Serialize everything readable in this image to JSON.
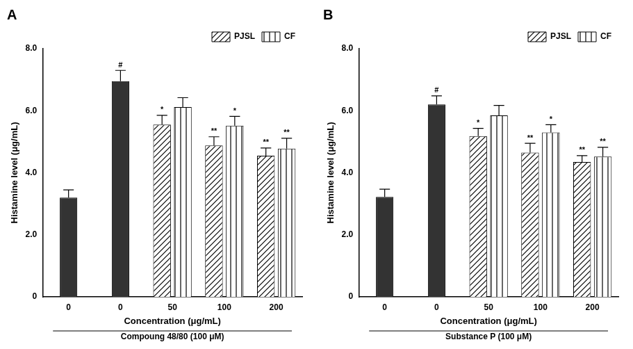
{
  "chart_data": [
    {
      "type": "bar",
      "title": "A",
      "categories": [
        "0",
        "0",
        "50",
        "100",
        "200"
      ],
      "x_label": "Concentration (μg/mL)",
      "x_sublabel": "Compoung 48/80 (100 μM)",
      "y_label": "Histamine level (μg/mL)",
      "values": [
        3.2,
        6.95,
        null,
        null,
        null
      ],
      "errors": [
        0.25,
        0.35,
        null,
        null,
        null
      ],
      "annotations": [
        null,
        "#",
        null,
        null,
        null
      ],
      "color": "#333333",
      "series": [
        {
          "name": "PJSL",
          "color": "#000000",
          "marker": "diagonal",
          "values": [
            null,
            null,
            5.55,
            4.88,
            4.55
          ],
          "errors": [
            null,
            null,
            0.3,
            0.28,
            0.25
          ],
          "annotations": [
            null,
            null,
            "*",
            "**",
            "**"
          ]
        },
        {
          "name": "CF",
          "color": "#000000",
          "marker": "vertical",
          "values": [
            null,
            null,
            6.12,
            5.52,
            4.78
          ],
          "errors": [
            null,
            null,
            0.3,
            0.3,
            0.33
          ],
          "annotations": [
            null,
            null,
            null,
            "*",
            "**"
          ]
        }
      ],
      "ylim": [
        0,
        8
      ],
      "yticks": [
        0,
        {
          "value": 2,
          "label": "2.0"
        },
        {
          "value": 4,
          "label": "4.0"
        },
        {
          "value": 6,
          "label": "6.0"
        },
        {
          "value": 8,
          "label": "8.0"
        }
      ],
      "grid": false,
      "legend": "upper right"
    },
    {
      "type": "bar",
      "title": "B",
      "categories": [
        "0",
        "0",
        "50",
        "100",
        "200"
      ],
      "x_label": "Concentration (μg/mL)",
      "x_sublabel": "Substance P (100 μM)",
      "y_label": "Histamine level (μg/mL)",
      "values": [
        3.22,
        6.2,
        null,
        null,
        null
      ],
      "errors": [
        0.25,
        0.28,
        null,
        null,
        null
      ],
      "annotations": [
        null,
        "#",
        null,
        null,
        null
      ],
      "color": "#333333",
      "series": [
        {
          "name": "PJSL",
          "color": "#000000",
          "marker": "diagonal",
          "values": [
            null,
            null,
            5.18,
            4.65,
            4.35
          ],
          "errors": [
            null,
            null,
            0.25,
            0.3,
            0.2
          ],
          "annotations": [
            null,
            null,
            "*",
            "**",
            "**"
          ]
        },
        {
          "name": "CF",
          "color": "#000000",
          "marker": "vertical",
          "values": [
            null,
            null,
            5.85,
            5.3,
            4.52
          ],
          "errors": [
            null,
            null,
            0.32,
            0.25,
            0.3
          ],
          "annotations": [
            null,
            null,
            null,
            "*",
            "**"
          ]
        }
      ],
      "ylim": [
        0,
        8
      ],
      "yticks": [
        0,
        {
          "value": 2,
          "label": "2.0"
        },
        {
          "value": 4,
          "label": "4.0"
        },
        {
          "value": 6,
          "label": "6.0"
        },
        {
          "value": 8,
          "label": "8.0"
        }
      ],
      "grid": false,
      "legend": "upper right"
    }
  ]
}
